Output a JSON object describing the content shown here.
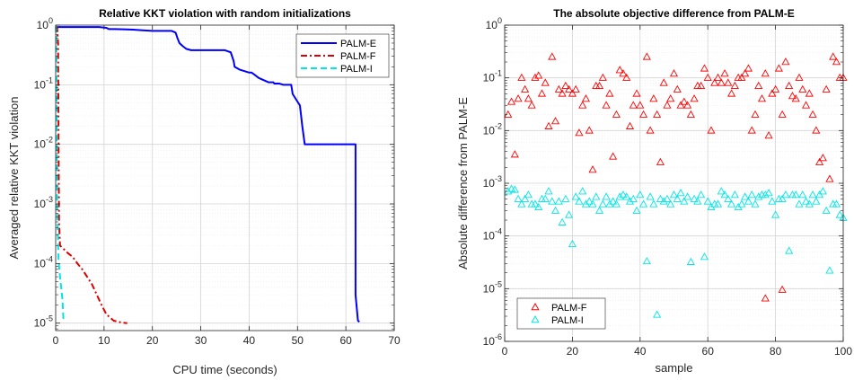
{
  "colors": {
    "palm_e": "#0000ff",
    "palm_f": "#dd0000",
    "palm_i": "#00e6e6",
    "marker_f": "#ff0000",
    "marker_i": "#00e6e6",
    "major_grid": "#d4d4d4",
    "minor_grid": "#ebebeb",
    "axes": "#262626"
  },
  "chart_data": [
    {
      "type": "line",
      "title": "Relative KKT violation with random initializations",
      "xlabel": "CPU time (seconds)",
      "ylabel": "Averaged relative KKT violation",
      "xlim": [
        0,
        70
      ],
      "ylim": [
        7.5e-06,
        1
      ],
      "yscale": "log",
      "grid": true,
      "x_ticks": [
        "0",
        "10",
        "20",
        "30",
        "40",
        "50",
        "60",
        "70"
      ],
      "y_ticks": [
        {
          "base": "10",
          "exp": "-5"
        },
        {
          "base": "10",
          "exp": "-4"
        },
        {
          "base": "10",
          "exp": "-3"
        },
        {
          "base": "10",
          "exp": "-2"
        },
        {
          "base": "10",
          "exp": "-1"
        },
        {
          "base": "10",
          "exp": "0"
        }
      ],
      "legend_position": "top-right",
      "series": [
        {
          "name": "PALM-E",
          "style": "solid",
          "x": [
            0,
            9,
            10.5,
            11,
            12,
            14,
            16,
            18,
            20,
            22,
            24,
            24.8,
            25.2,
            25.6,
            26.2,
            27,
            28,
            31,
            33,
            35,
            36.2,
            36.8,
            37,
            38,
            40,
            40.5,
            41,
            42,
            44,
            45,
            45.2,
            46.2,
            47,
            48.7,
            49,
            50.5,
            51,
            51.5,
            62,
            62,
            62.5,
            62.8
          ],
          "y": [
            0.93,
            0.93,
            0.9,
            0.86,
            0.86,
            0.85,
            0.84,
            0.82,
            0.8,
            0.8,
            0.8,
            0.75,
            0.6,
            0.5,
            0.45,
            0.4,
            0.38,
            0.38,
            0.38,
            0.38,
            0.35,
            0.25,
            0.2,
            0.18,
            0.16,
            0.16,
            0.15,
            0.13,
            0.11,
            0.11,
            0.105,
            0.105,
            0.1,
            0.1,
            0.07,
            0.045,
            0.02,
            0.01,
            0.01,
            3e-05,
            1.1e-05,
            1.05e-05
          ]
        },
        {
          "name": "PALM-F",
          "style": "dashdot",
          "x": [
            0,
            0.05,
            0.3,
            0.5,
            0.6,
            0.7,
            0.9,
            1.5,
            2.5,
            3.5,
            4.5,
            5.5,
            6.5,
            7.5,
            8.5,
            9.5,
            10.5,
            12,
            13.5,
            14.8
          ],
          "y": [
            0.95,
            0.95,
            0.9,
            0.5,
            0.01,
            0.0005,
            0.0002,
            0.00018,
            0.00015,
            0.00013,
            0.0001,
            8e-05,
            6e-05,
            4.5e-05,
            3e-05,
            2e-05,
            1.4e-05,
            1.1e-05,
            1.03e-05,
            1e-05
          ]
        },
        {
          "name": "PALM-I",
          "style": "dashed",
          "x": [
            0,
            0.05,
            0.1,
            0.2,
            0.3,
            0.6,
            1.0,
            1.4,
            1.6
          ],
          "y": [
            0.95,
            0.95,
            0.6,
            0.05,
            0.001,
            0.00011,
            5e-05,
            2.5e-05,
            1.15e-05
          ]
        }
      ]
    },
    {
      "type": "scatter",
      "title": "The absolute objective difference from PALM-E",
      "xlabel": "sample",
      "ylabel": "Absolute difference from PALM-E",
      "xlim": [
        0,
        100
      ],
      "ylim": [
        1e-06,
        1
      ],
      "yscale": "log",
      "grid": true,
      "x_ticks": [
        "0",
        "20",
        "40",
        "60",
        "80",
        "100"
      ],
      "y_ticks": [
        {
          "base": "10",
          "exp": "-6"
        },
        {
          "base": "10",
          "exp": "-5"
        },
        {
          "base": "10",
          "exp": "-4"
        },
        {
          "base": "10",
          "exp": "-3"
        },
        {
          "base": "10",
          "exp": "-2"
        },
        {
          "base": "10",
          "exp": "-1"
        },
        {
          "base": "10",
          "exp": "0"
        }
      ],
      "legend_position": "bottom-left",
      "series": [
        {
          "name": "PALM-F",
          "marker": "triangle",
          "x": [
            1,
            2,
            3,
            4,
            5,
            6,
            7,
            8,
            9,
            10,
            11,
            12,
            13,
            14,
            15,
            16,
            17,
            18,
            19,
            20,
            21,
            22,
            23,
            24,
            25,
            26,
            27,
            28,
            29,
            30,
            31,
            32,
            33,
            34,
            35,
            36,
            37,
            38,
            39,
            40,
            41,
            42,
            43,
            44,
            45,
            46,
            47,
            48,
            49,
            50,
            51,
            52,
            53,
            54,
            55,
            56,
            57,
            58,
            59,
            60,
            61,
            62,
            63,
            64,
            65,
            66,
            67,
            68,
            69,
            70,
            71,
            72,
            73,
            74,
            75,
            76,
            77,
            78,
            79,
            80,
            81,
            82,
            83,
            84,
            85,
            86,
            87,
            88,
            89,
            90,
            91,
            92,
            93,
            94,
            95,
            96,
            97,
            98,
            99,
            100
          ],
          "y": [
            0.02,
            0.035,
            0.0035,
            0.04,
            0.1,
            0.06,
            0.04,
            0.03,
            0.1,
            0.11,
            0.05,
            0.08,
            0.012,
            0.25,
            0.015,
            0.06,
            0.05,
            0.07,
            0.06,
            0.05,
            0.06,
            0.009,
            0.03,
            0.04,
            0.01,
            0.0018,
            0.07,
            0.07,
            0.1,
            0.03,
            0.05,
            0.0032,
            0.02,
            0.14,
            0.12,
            0.1,
            0.012,
            0.03,
            0.05,
            0.03,
            0.02,
            0.25,
            0.01,
            0.04,
            0.02,
            0.0025,
            0.08,
            0.03,
            0.04,
            0.12,
            0.06,
            0.03,
            0.035,
            0.03,
            0.02,
            0.04,
            0.07,
            0.07,
            0.15,
            0.1,
            0.01,
            0.08,
            0.1,
            0.08,
            0.12,
            0.08,
            0.05,
            0.07,
            0.1,
            0.1,
            0.12,
            0.15,
            0.01,
            0.02,
            0.07,
            0.04,
            0.12,
            0.008,
            0.05,
            0.06,
            0.15,
            0.02,
            0.2,
            0.07,
            0.045,
            0.04,
            0.1,
            0.06,
            0.03,
            0.05,
            0.02,
            0.01,
            0.0025,
            0.003,
            0.06,
            0.0012,
            0.25,
            0.2,
            0.1,
            0.1
          ]
        },
        {
          "name": "PALM-I",
          "marker": "triangle",
          "x": [
            1,
            2,
            3,
            4,
            5,
            6,
            7,
            8,
            9,
            10,
            11,
            12,
            13,
            14,
            15,
            16,
            17,
            18,
            19,
            20,
            21,
            22,
            23,
            24,
            25,
            26,
            27,
            28,
            29,
            30,
            31,
            32,
            33,
            34,
            35,
            36,
            37,
            38,
            39,
            40,
            41,
            42,
            43,
            44,
            45,
            46,
            47,
            48,
            49,
            50,
            51,
            52,
            53,
            54,
            55,
            56,
            57,
            58,
            59,
            60,
            61,
            62,
            63,
            64,
            65,
            66,
            67,
            68,
            69,
            70,
            71,
            72,
            73,
            74,
            75,
            76,
            77,
            78,
            79,
            80,
            81,
            82,
            83,
            84,
            85,
            86,
            87,
            88,
            89,
            90,
            91,
            92,
            93,
            94,
            95,
            96,
            97,
            98,
            99,
            100
          ],
          "y": [
            0.0007,
            0.00078,
            0.00075,
            0.0005,
            0.0004,
            0.0005,
            0.0006,
            0.0004,
            0.0004,
            0.00035,
            0.0005,
            0.0005,
            0.0007,
            0.00045,
            0.0003,
            0.00045,
            0.00018,
            0.0005,
            0.00025,
            7e-05,
            0.00055,
            0.00045,
            0.0007,
            0.0004,
            0.00045,
            0.0004,
            0.00055,
            0.0003,
            0.0004,
            0.00055,
            0.0004,
            0.00045,
            0.0004,
            0.00055,
            0.0006,
            0.00055,
            0.00045,
            0.0005,
            0.0003,
            0.0006,
            0.0004,
            3.3e-05,
            0.00055,
            0.0004,
            3.2e-06,
            0.0005,
            0.00045,
            0.0005,
            0.0004,
            0.0006,
            0.0005,
            0.00065,
            0.00045,
            0.00055,
            3.2e-05,
            0.0005,
            0.00045,
            0.0006,
            4e-05,
            0.00045,
            0.00035,
            0.0004,
            0.0004,
            0.0007,
            0.0006,
            0.0005,
            0.0004,
            0.0006,
            0.00035,
            0.0004,
            0.00055,
            0.00045,
            0.0006,
            0.0004,
            0.00055,
            0.0006,
            0.0006,
            0.00065,
            0.00045,
            0.00025,
            0.0005,
            0.0005,
            0.0006,
            5.2e-05,
            0.0006,
            0.0006,
            0.0004,
            0.0006,
            0.00045,
            0.0004,
            0.0006,
            0.00045,
            0.0006,
            0.0007,
            0.0003,
            2.2e-05,
            0.0004,
            0.0004,
            0.00025,
            0.00022
          ]
        }
      ],
      "outliers": {
        "PALM-F": {
          "x": [
            77,
            82
          ],
          "y": [
            6.5e-06,
            9.5e-06
          ]
        }
      }
    }
  ]
}
